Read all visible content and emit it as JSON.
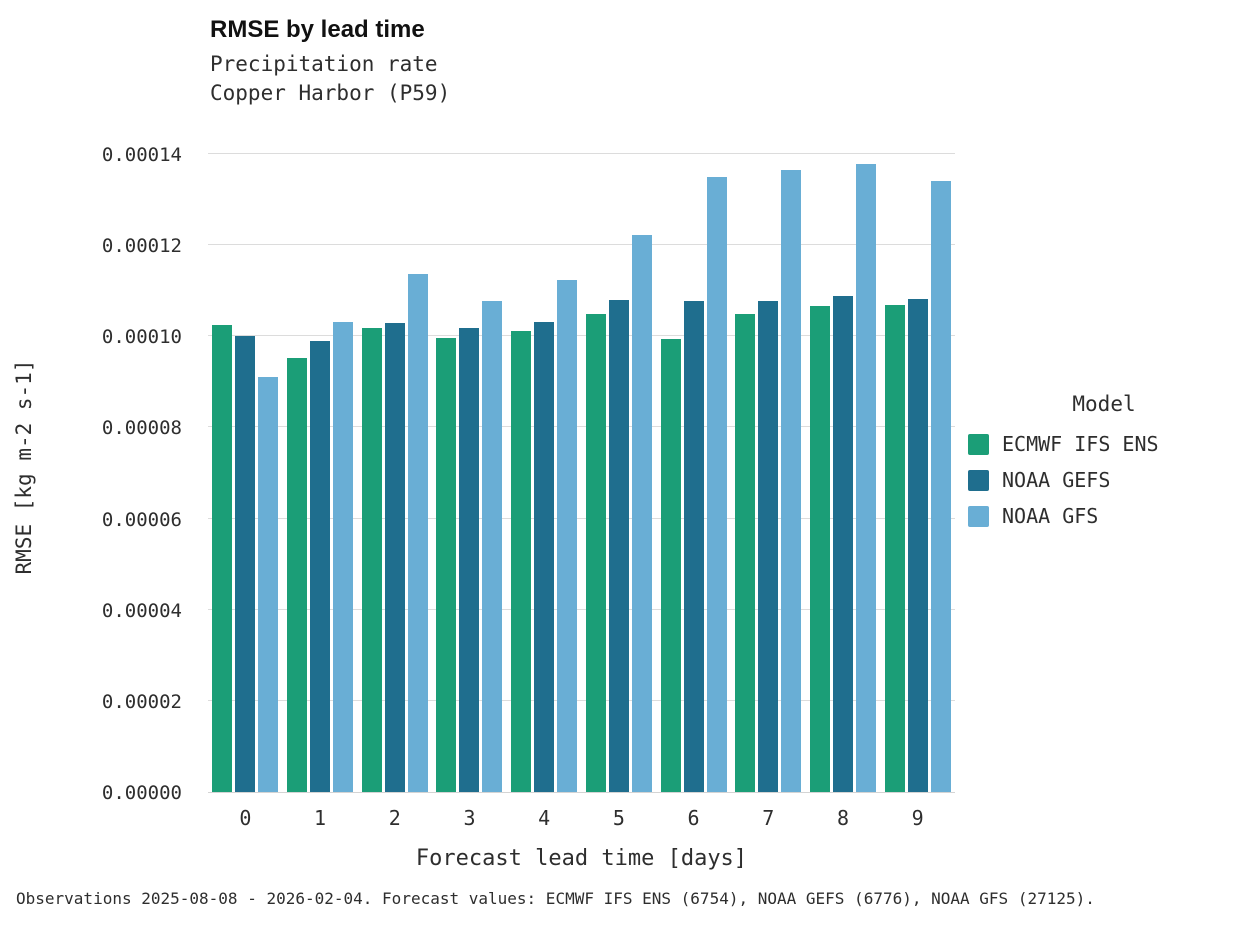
{
  "chart_data": {
    "type": "bar",
    "title": "RMSE by lead time",
    "subtitle": [
      "Precipitation rate",
      "Copper Harbor (P59)"
    ],
    "xlabel": "Forecast lead time [days]",
    "ylabel": "RMSE [kg m-2 s-1]",
    "categories": [
      "0",
      "1",
      "2",
      "3",
      "4",
      "5",
      "6",
      "7",
      "8",
      "9"
    ],
    "series": [
      {
        "name": "ECMWF IFS ENS",
        "color": "#1b9e77",
        "values": [
          0.0001025,
          9.53e-05,
          0.0001018,
          9.97e-05,
          0.0001012,
          0.0001048,
          9.95e-05,
          0.0001049,
          0.0001067,
          0.0001069
        ]
      },
      {
        "name": "NOAA GEFS",
        "color": "#1f6e8e",
        "values": [
          0.0001,
          9.9e-05,
          0.0001029,
          0.0001019,
          0.0001032,
          0.0001079,
          0.0001077,
          0.0001077,
          0.0001089,
          0.0001082
        ]
      },
      {
        "name": "NOAA GFS",
        "color": "#69aed5",
        "values": [
          9.1e-05,
          0.0001031,
          0.0001136,
          0.0001078,
          0.0001124,
          0.0001222,
          0.000135,
          0.0001366,
          0.0001378,
          0.000134
        ]
      }
    ],
    "ylim": [
      0,
      0.00014
    ],
    "yticks": [
      "0.00000",
      "0.00002",
      "0.00004",
      "0.00006",
      "0.00008",
      "0.00010",
      "0.00012",
      "0.00014"
    ],
    "grid": "horizontal",
    "legend_title": "Model",
    "legend_position": "right",
    "footer": "Observations 2025-08-08 - 2026-02-04. Forecast values: ECMWF IFS ENS (6754), NOAA GEFS (6776), NOAA GFS (27125)."
  }
}
